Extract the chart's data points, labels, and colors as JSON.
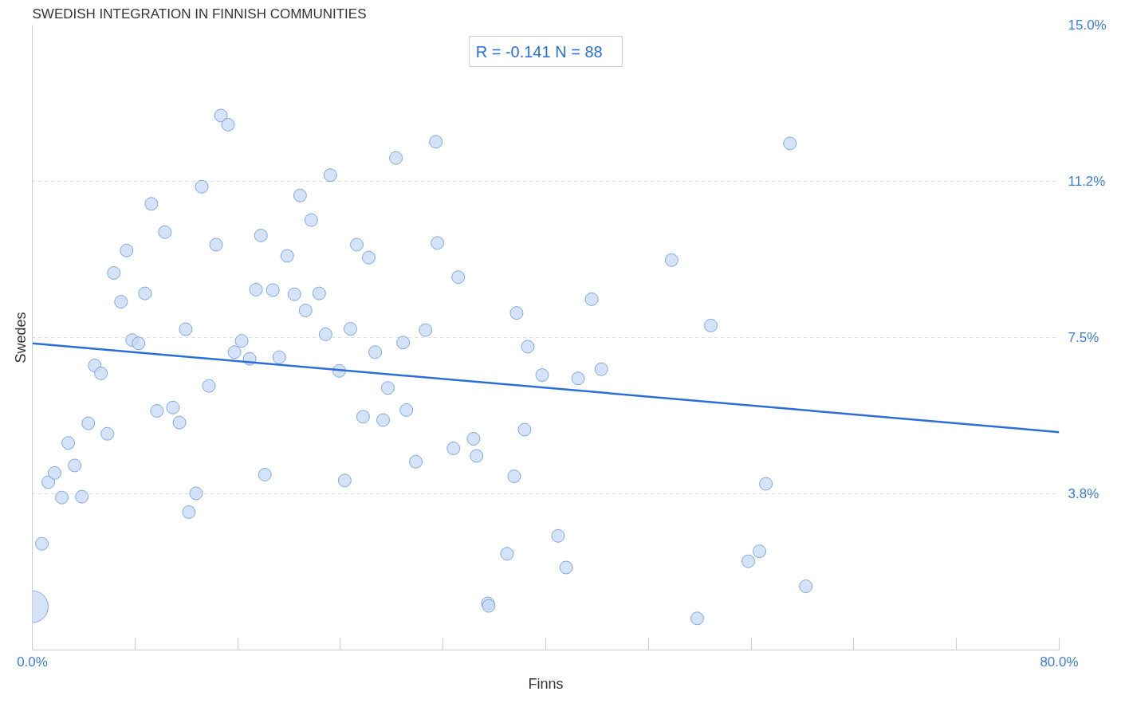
{
  "chart_data": {
    "type": "bubble",
    "title": "SWEDISH INTEGRATION IN FINNISH COMMUNITIES",
    "xlabel": "Finns",
    "ylabel": "Swedes",
    "annotations": [
      "R = -0.141",
      "N = 88"
    ],
    "xlim": [
      0,
      80
    ],
    "ylim": [
      0,
      15
    ],
    "xticks": [
      {
        "value": 0,
        "label": "0.0%"
      },
      {
        "value": 8,
        "label": null
      },
      {
        "value": 16,
        "label": null
      },
      {
        "value": 24,
        "label": null
      },
      {
        "value": 32,
        "label": null
      },
      {
        "value": 40,
        "label": null
      },
      {
        "value": 48,
        "label": null
      },
      {
        "value": 56,
        "label": null
      },
      {
        "value": 64,
        "label": null
      },
      {
        "value": 72,
        "label": null
      },
      {
        "value": 80,
        "label": "80.0%"
      }
    ],
    "yticks": [
      {
        "value": 3.75,
        "label": "3.8%"
      },
      {
        "value": 7.5,
        "label": "7.5%"
      },
      {
        "value": 11.25,
        "label": "11.2%"
      },
      {
        "value": 15,
        "label": "15.0%"
      }
    ],
    "grid": "y",
    "series": [
      {
        "color": "#c5daf6",
        "x": [
          0,
          0.75,
          1.25,
          1.74,
          2.3,
          2.8,
          3.3,
          3.86,
          4.36,
          4.86,
          5.35,
          5.85,
          6.35,
          6.91,
          7.35,
          7.78,
          8.28,
          8.78,
          9.28,
          9.71,
          10.33,
          10.96,
          11.46,
          11.95,
          12.2,
          12.76,
          13.2,
          13.76,
          14.32,
          14.69,
          15.25,
          15.75,
          16.31,
          16.93,
          17.43,
          17.81,
          18.12,
          18.74,
          19.24,
          19.86,
          20.42,
          20.86,
          21.29,
          21.73,
          22.35,
          22.85,
          23.22,
          23.91,
          24.34,
          24.78,
          25.28,
          25.77,
          26.21,
          26.71,
          27.33,
          27.7,
          28.33,
          28.89,
          29.14,
          29.88,
          30.63,
          31.44,
          31.56,
          32.81,
          33.18,
          34.37,
          34.61,
          35.49,
          35.55,
          36.98,
          37.54,
          37.73,
          38.35,
          38.6,
          39.72,
          40.96,
          41.59,
          42.52,
          43.58,
          44.33,
          49.81,
          51.8,
          52.86,
          55.78,
          56.65,
          57.15,
          59.02,
          60.26
        ],
        "values": [
          1.04,
          2.55,
          4.03,
          4.25,
          3.66,
          4.97,
          4.43,
          3.68,
          5.44,
          6.83,
          6.64,
          5.19,
          9.05,
          8.36,
          9.59,
          7.44,
          7.36,
          8.56,
          10.71,
          5.74,
          10.03,
          5.82,
          5.46,
          7.7,
          3.31,
          3.76,
          11.12,
          6.34,
          9.73,
          12.83,
          12.61,
          7.15,
          7.42,
          6.99,
          8.65,
          9.95,
          4.21,
          8.64,
          7.03,
          9.46,
          8.54,
          10.91,
          8.15,
          10.32,
          8.56,
          7.58,
          11.4,
          6.7,
          4.07,
          7.71,
          9.73,
          5.6,
          9.42,
          7.15,
          5.52,
          6.29,
          11.81,
          7.38,
          5.76,
          4.52,
          7.68,
          12.2,
          9.77,
          4.84,
          8.95,
          5.07,
          4.66,
          1.12,
          1.06,
          2.31,
          4.17,
          8.09,
          5.29,
          7.28,
          6.6,
          2.74,
          1.98,
          6.52,
          8.42,
          6.74,
          9.36,
          0.76,
          7.79,
          2.13,
          2.37,
          3.99,
          12.16,
          1.53
        ],
        "sizes": [
          1,
          0.16,
          0.16,
          0.16,
          0.16,
          0.16,
          0.16,
          0.16,
          0.16,
          0.16,
          0.16,
          0.16,
          0.16,
          0.16,
          0.16,
          0.16,
          0.16,
          0.16,
          0.16,
          0.16,
          0.16,
          0.16,
          0.16,
          0.16,
          0.16,
          0.16,
          0.16,
          0.16,
          0.16,
          0.16,
          0.16,
          0.16,
          0.16,
          0.16,
          0.16,
          0.16,
          0.16,
          0.16,
          0.16,
          0.16,
          0.16,
          0.16,
          0.16,
          0.16,
          0.16,
          0.16,
          0.16,
          0.16,
          0.16,
          0.16,
          0.16,
          0.16,
          0.16,
          0.16,
          0.16,
          0.16,
          0.16,
          0.16,
          0.16,
          0.16,
          0.16,
          0.16,
          0.16,
          0.16,
          0.16,
          0.16,
          0.16,
          0.16,
          0.16,
          0.16,
          0.16,
          0.16,
          0.16,
          0.16,
          0.16,
          0.16,
          0.16,
          0.16,
          0.16,
          0.16,
          0.16,
          0.16,
          0.16,
          0.16,
          0.16,
          0.16,
          0.16,
          0.16
        ]
      },
      {
        "type": "line",
        "color": "#2a6fd6",
        "x": [
          0,
          80
        ],
        "values": [
          7.36,
          5.23
        ]
      }
    ]
  }
}
